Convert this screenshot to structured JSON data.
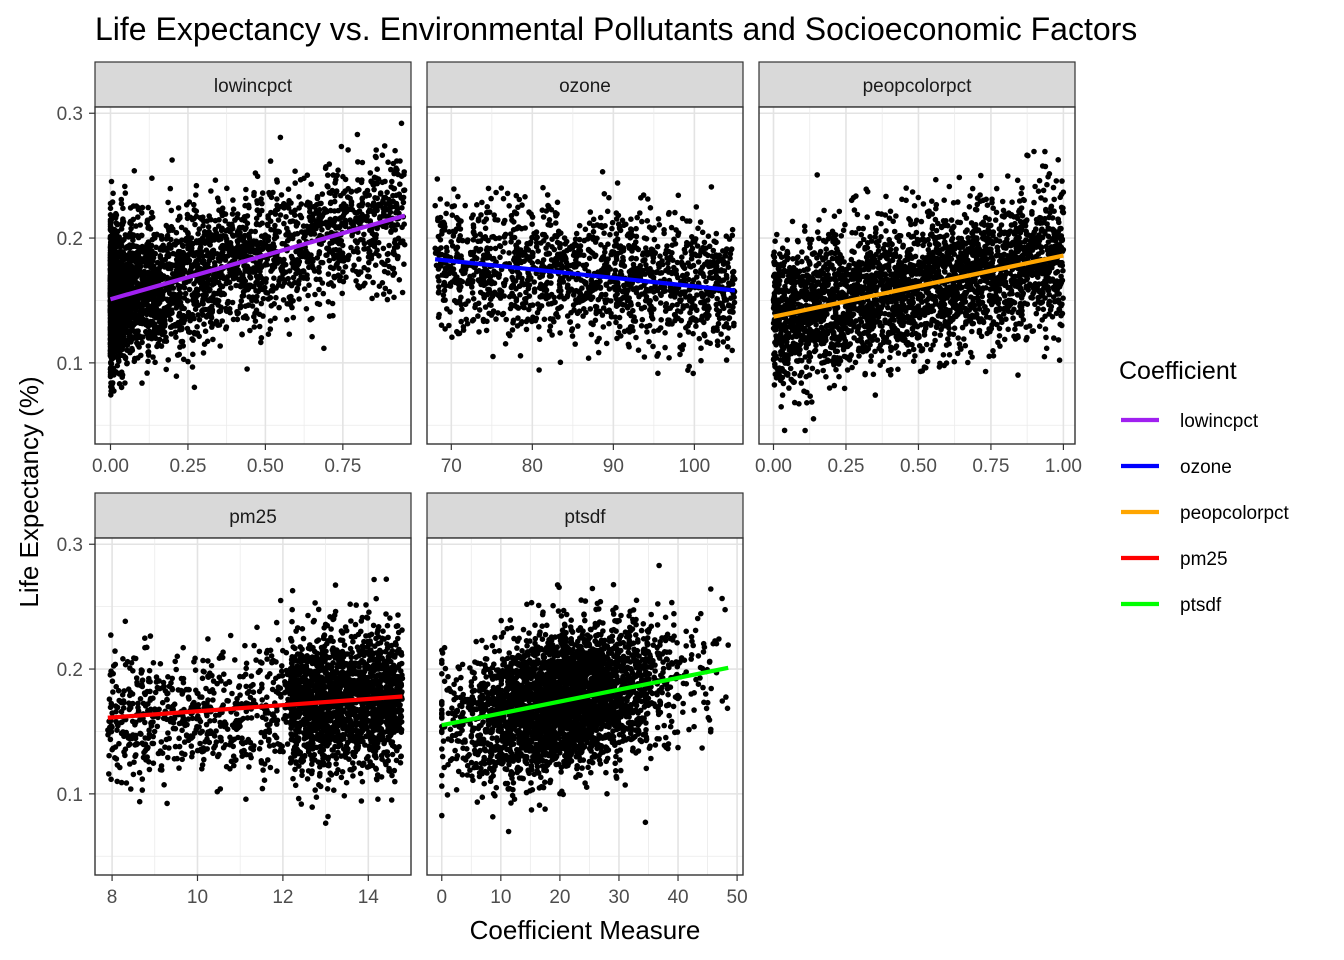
{
  "chart_data": {
    "type": "scatter",
    "title": "Life Expectancy vs. Environmental Pollutants and Socioeconomic Factors",
    "xlabel": "Coefficient Measure",
    "ylabel": "Life Expectancy (%)",
    "facet_scales": "free_x",
    "ylim": [
      0.035,
      0.305
    ],
    "y_ticks": [
      0.1,
      0.2,
      0.3
    ],
    "y_tick_labels": [
      "0.1",
      "0.2",
      "0.3"
    ],
    "grid": true,
    "legend": {
      "title": "Coefficient",
      "placement": "right",
      "entries": [
        {
          "label": "lowincpct",
          "color": "#a020f0"
        },
        {
          "label": "ozone",
          "color": "#0000ff"
        },
        {
          "label": "peopcolorpct",
          "color": "#ffa500"
        },
        {
          "label": "pm25",
          "color": "#ff0000"
        },
        {
          "label": "ptsdf",
          "color": "#00ff00"
        }
      ]
    },
    "panels": [
      {
        "name": "lowincpct",
        "xlim": [
          -0.05,
          0.97
        ],
        "x_ticks": [
          0,
          0.25,
          0.5,
          0.75
        ],
        "x_tick_labels": [
          "0.00",
          "0.25",
          "0.50",
          "0.75"
        ],
        "fit_line": {
          "x": [
            0.0,
            0.95
          ],
          "y": [
            0.151,
            0.218
          ],
          "color": "#a020f0"
        },
        "points": {
          "count": 3200,
          "x_range": [
            0.0,
            0.95
          ],
          "x_skew": 0.35,
          "y_spread": 0.028,
          "y_range": [
            0.043,
            0.296
          ],
          "shape": "dense"
        }
      },
      {
        "name": "ozone",
        "xlim": [
          67,
          106
        ],
        "x_ticks": [
          70,
          80,
          90,
          100
        ],
        "x_tick_labels": [
          "70",
          "80",
          "90",
          "100"
        ],
        "fit_line": {
          "x": [
            68,
            105
          ],
          "y": [
            0.183,
            0.158
          ],
          "color": "#0000ff"
        },
        "points": {
          "count": 1500,
          "x_range": [
            68,
            105
          ],
          "x_skew": 1.0,
          "y_spread": 0.026,
          "y_range": [
            0.043,
            0.296
          ],
          "shape": "uniform"
        }
      },
      {
        "name": "peopcolorpct",
        "xlim": [
          -0.05,
          1.04
        ],
        "x_ticks": [
          0,
          0.25,
          0.5,
          0.75,
          1.0
        ],
        "x_tick_labels": [
          "0.00",
          "0.25",
          "0.50",
          "0.75",
          "1.00"
        ],
        "fit_line": {
          "x": [
            0.0,
            1.0
          ],
          "y": [
            0.137,
            0.186
          ],
          "color": "#ffa500"
        },
        "points": {
          "count": 3000,
          "x_range": [
            0.0,
            1.0
          ],
          "x_skew": 0.8,
          "y_spread": 0.028,
          "y_range": [
            0.043,
            0.296
          ],
          "shape": "dense"
        }
      },
      {
        "name": "pm25",
        "xlim": [
          7.6,
          15.0
        ],
        "x_ticks": [
          8,
          10,
          12,
          14
        ],
        "x_tick_labels": [
          "8",
          "10",
          "12",
          "14"
        ],
        "fit_line": {
          "x": [
            7.9,
            14.8
          ],
          "y": [
            0.161,
            0.178
          ],
          "color": "#ff0000"
        },
        "points": {
          "count": 2400,
          "x_range": [
            7.9,
            14.8
          ],
          "x_skew": 0.55,
          "y_spread": 0.028,
          "y_range": [
            0.043,
            0.296
          ],
          "shape": "right-heavy"
        }
      },
      {
        "name": "ptsdf",
        "xlim": [
          -2.5,
          51
        ],
        "x_ticks": [
          0,
          10,
          20,
          30,
          40,
          50
        ],
        "x_tick_labels": [
          "0",
          "10",
          "20",
          "30",
          "40",
          "50"
        ],
        "fit_line": {
          "x": [
            0,
            48.5
          ],
          "y": [
            0.155,
            0.201
          ],
          "color": "#00ff00"
        },
        "points": {
          "count": 3400,
          "x_range": [
            0,
            48.5
          ],
          "x_skew": 1.0,
          "y_spread": 0.027,
          "y_range": [
            0.043,
            0.296
          ],
          "shape": "hump"
        }
      }
    ]
  }
}
